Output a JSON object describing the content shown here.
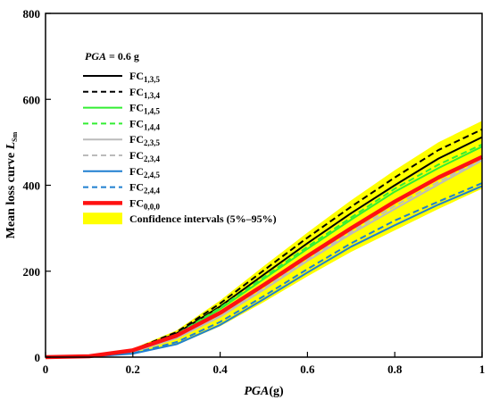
{
  "chart_data": {
    "type": "line",
    "xlabel_italic": "PGA",
    "xlabel_rest": "(g)",
    "ylabel_main": "Mean loss curve ",
    "ylabel_italic": "L",
    "ylabel_sub": "Sm",
    "xlim": [
      0,
      1
    ],
    "ylim": [
      0,
      800
    ],
    "xticks": [
      "0",
      "0.2",
      "0.4",
      "0.6",
      "0.8",
      "1"
    ],
    "xtick_values": [
      0,
      0.2,
      0.4,
      0.6,
      0.8,
      1.0
    ],
    "yticks": [
      "0",
      "200",
      "400",
      "600",
      "800"
    ],
    "ytick_values": [
      0,
      200,
      400,
      600,
      800
    ],
    "annotation_italic": "PGA",
    "annotation_rest": " = 0.6 g",
    "x": [
      0,
      0.1,
      0.2,
      0.3,
      0.4,
      0.5,
      0.6,
      0.7,
      0.8,
      0.9,
      1.0
    ],
    "series": [
      {
        "name": "FC",
        "sub": "1,3,5",
        "color": "#000000",
        "dash": "solid",
        "width": 2,
        "values": [
          0,
          2,
          16,
          55,
          118,
          192,
          265,
          335,
          400,
          462,
          512
        ]
      },
      {
        "name": "FC",
        "sub": "1,3,4",
        "color": "#000000",
        "dash": "dashed",
        "width": 2,
        "values": [
          0,
          2,
          17,
          58,
          125,
          202,
          278,
          350,
          418,
          482,
          530
        ]
      },
      {
        "name": "FC",
        "sub": "1,4,5",
        "color": "#33ee33",
        "dash": "solid",
        "width": 2,
        "values": [
          0,
          2,
          15,
          52,
          112,
          182,
          252,
          320,
          385,
          440,
          490
        ]
      },
      {
        "name": "FC",
        "sub": "1,4,4",
        "color": "#33ee33",
        "dash": "dashed",
        "width": 2,
        "values": [
          0,
          2,
          15,
          53,
          115,
          186,
          257,
          325,
          392,
          448,
          495
        ]
      },
      {
        "name": "FC",
        "sub": "2,3,5",
        "color": "#bbbbbb",
        "dash": "solid",
        "width": 2,
        "values": [
          0,
          2,
          12,
          44,
          94,
          157,
          224,
          287,
          345,
          402,
          458
        ]
      },
      {
        "name": "FC",
        "sub": "2,3,4",
        "color": "#bbbbbb",
        "dash": "dashed",
        "width": 2,
        "values": [
          0,
          2,
          12,
          45,
          97,
          160,
          228,
          292,
          352,
          408,
          462
        ]
      },
      {
        "name": "FC",
        "sub": "2,4,5",
        "color": "#1f7fd0",
        "dash": "solid",
        "width": 2,
        "values": [
          0,
          1,
          8,
          30,
          75,
          135,
          197,
          257,
          307,
          355,
          398
        ]
      },
      {
        "name": "FC",
        "sub": "2,4,4",
        "color": "#1f7fd0",
        "dash": "dashed",
        "width": 2,
        "values": [
          0,
          1,
          9,
          35,
          82,
          142,
          205,
          265,
          318,
          362,
          405
        ]
      },
      {
        "name": "FC",
        "sub": "0,0,0",
        "color": "#ff1111",
        "dash": "solid",
        "width": 4.5,
        "values": [
          0,
          2,
          16,
          50,
          103,
          168,
          235,
          300,
          362,
          418,
          466
        ]
      }
    ],
    "band": {
      "name": "Confidence intervals (5%–95%)",
      "color": "#ffff00",
      "lower": [
        0,
        1,
        7,
        28,
        72,
        128,
        188,
        245,
        295,
        345,
        392
      ],
      "upper": [
        0,
        3,
        20,
        62,
        132,
        212,
        290,
        365,
        435,
        500,
        550
      ]
    }
  }
}
